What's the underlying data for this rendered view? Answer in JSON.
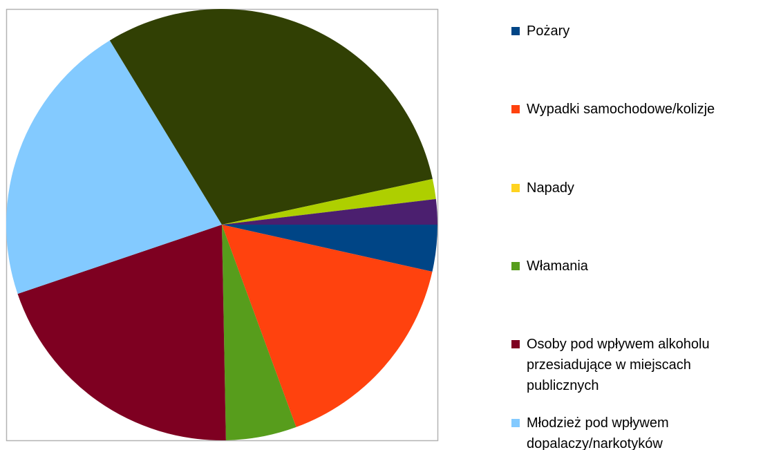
{
  "chart_data": {
    "type": "pie",
    "categories": [
      "Pożary",
      "Wypadki samochodowe/kolizje",
      "Napady",
      "Włamania",
      "Osoby pod wpływem alkoholu przesiadujące w miejscach publicznych",
      "Młodzież pod wpływem dopalaczy/narkotyków",
      null,
      null,
      null
    ],
    "values": [
      3.5,
      15.9,
      0,
      5.3,
      20.1,
      21.5,
      30.3,
      1.5,
      1.9
    ],
    "colors": [
      "#004586",
      "#ff420e",
      "#ffd320",
      "#579d1c",
      "#7e0021",
      "#83caff",
      "#314004",
      "#aecf00",
      "#4b1f6f"
    ],
    "legend": "right"
  }
}
